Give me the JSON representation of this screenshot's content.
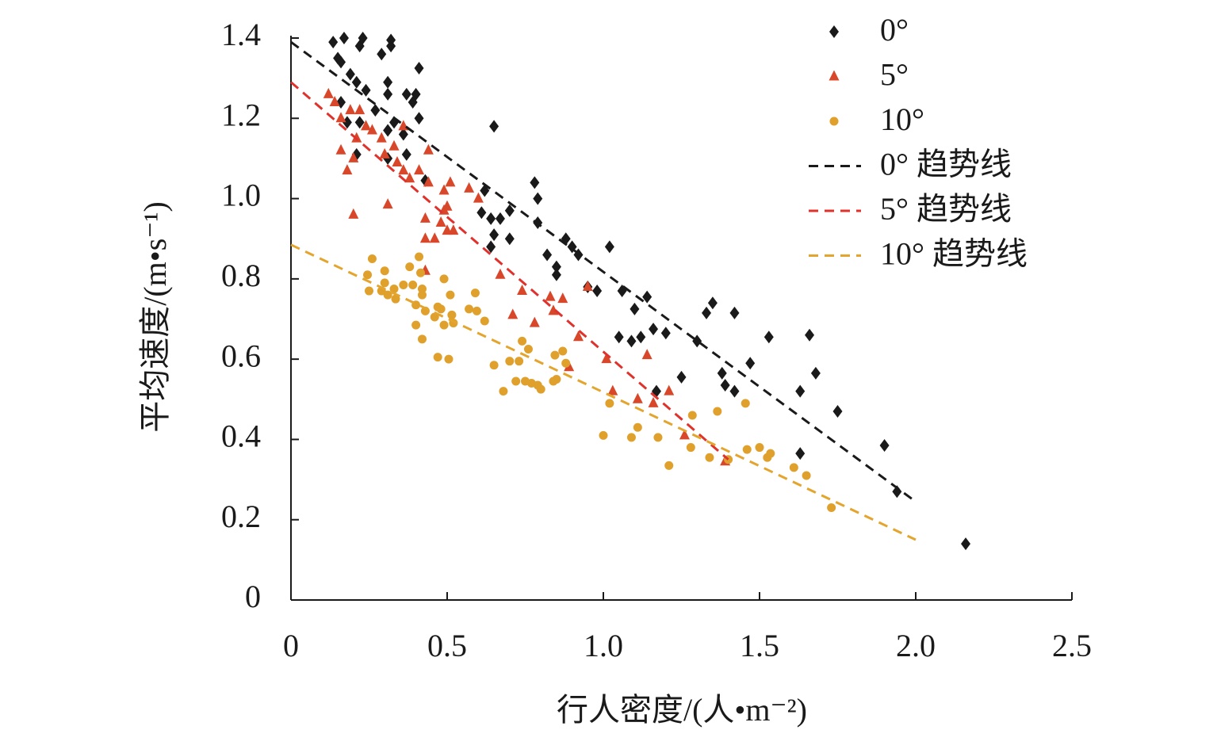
{
  "chart_data": {
    "type": "scatter",
    "x_label": "行人密度/(人•m⁻²)",
    "y_label": "平均速度/(m•s⁻¹)",
    "xlim": [
      0,
      2.5
    ],
    "xticks": [
      0,
      0.5,
      {
        "value": 1,
        "label": "1.0"
      },
      1.5,
      {
        "value": 2,
        "label": "2.0"
      },
      2.5
    ],
    "ylim": [
      0,
      1.4
    ],
    "yticks": [
      0,
      0.2,
      0.4,
      0.6,
      0.8,
      {
        "value": 1,
        "label": "1.0"
      },
      1.2,
      1.4
    ],
    "grid": false,
    "legend": "top-right",
    "series": [
      {
        "name": "0°",
        "color": "#1a1a1a",
        "marker": "diamond",
        "x": [
          0.135,
          0.17,
          0.23,
          0.32,
          0.15,
          0.16,
          0.22,
          0.29,
          0.32,
          0.19,
          0.21,
          0.24,
          0.31,
          0.31,
          0.41,
          0.37,
          0.4,
          0.39,
          0.16,
          0.18,
          0.22,
          0.27,
          0.31,
          0.33,
          0.36,
          0.41,
          0.37,
          0.21,
          0.31,
          0.43,
          0.65,
          0.62,
          0.61,
          0.64,
          0.67,
          0.7,
          0.65,
          0.7,
          0.64,
          0.78,
          0.79,
          0.79,
          0.82,
          0.85,
          0.85,
          0.88,
          0.9,
          0.92,
          0.95,
          0.98,
          1.02,
          1.06,
          1.1,
          1.14,
          1.05,
          1.09,
          1.12,
          1.16,
          1.2,
          1.17,
          1.25,
          1.3,
          1.33,
          1.35,
          1.42,
          1.38,
          1.39,
          1.42,
          1.47,
          1.53,
          1.63,
          1.63,
          1.66,
          1.68,
          1.75,
          1.9,
          1.94,
          2.16
        ],
        "values": [
          1.39,
          1.4,
          1.4,
          1.395,
          1.35,
          1.34,
          1.38,
          1.36,
          1.38,
          1.31,
          1.29,
          1.27,
          1.29,
          1.26,
          1.325,
          1.26,
          1.26,
          1.24,
          1.24,
          1.19,
          1.19,
          1.22,
          1.17,
          1.19,
          1.16,
          1.2,
          1.11,
          1.11,
          1.1,
          1.045,
          1.18,
          1.02,
          0.965,
          0.95,
          0.95,
          0.97,
          0.91,
          0.9,
          0.88,
          1.04,
          1.0,
          0.94,
          0.86,
          0.83,
          0.81,
          0.9,
          0.88,
          0.86,
          0.78,
          0.77,
          0.88,
          0.77,
          0.725,
          0.755,
          0.655,
          0.645,
          0.655,
          0.675,
          0.665,
          0.52,
          0.555,
          0.645,
          0.715,
          0.74,
          0.715,
          0.565,
          0.535,
          0.52,
          0.59,
          0.655,
          0.52,
          0.365,
          0.66,
          0.565,
          0.47,
          0.385,
          0.27,
          0.14
        ]
      },
      {
        "name": "5°",
        "color": "#d9472b",
        "marker": "triangle",
        "x": [
          0.12,
          0.14,
          0.16,
          0.19,
          0.22,
          0.16,
          0.2,
          0.18,
          0.2,
          0.21,
          0.24,
          0.26,
          0.29,
          0.3,
          0.33,
          0.34,
          0.36,
          0.38,
          0.31,
          0.36,
          0.41,
          0.44,
          0.44,
          0.43,
          0.43,
          0.46,
          0.49,
          0.49,
          0.51,
          0.5,
          0.48,
          0.5,
          0.52,
          0.57,
          0.6,
          0.67,
          0.71,
          0.74,
          0.78,
          0.83,
          0.84,
          0.87,
          0.89,
          0.92,
          0.95,
          1.01,
          1.03,
          1.11,
          1.14,
          1.16,
          1.21,
          1.26,
          1.39,
          0.43
        ],
        "values": [
          1.26,
          1.24,
          1.2,
          1.22,
          1.22,
          1.12,
          1.1,
          1.07,
          0.96,
          1.15,
          1.18,
          1.17,
          1.15,
          1.11,
          1.13,
          1.09,
          1.07,
          1.05,
          0.985,
          1.18,
          1.07,
          1.12,
          1.04,
          0.95,
          0.9,
          0.9,
          0.97,
          1.02,
          1.04,
          0.98,
          0.94,
          0.92,
          0.92,
          1.025,
          1.0,
          0.81,
          0.71,
          0.77,
          0.69,
          0.755,
          0.72,
          0.75,
          0.58,
          0.655,
          0.78,
          0.6,
          0.52,
          0.5,
          0.61,
          0.49,
          0.52,
          0.41,
          0.345,
          0.82
        ]
      },
      {
        "name": "10°",
        "color": "#e0a02c",
        "marker": "circle",
        "x": [
          0.26,
          0.245,
          0.25,
          0.29,
          0.3,
          0.3,
          0.31,
          0.33,
          0.335,
          0.36,
          0.38,
          0.39,
          0.4,
          0.4,
          0.41,
          0.415,
          0.42,
          0.42,
          0.42,
          0.43,
          0.46,
          0.47,
          0.48,
          0.47,
          0.49,
          0.49,
          0.51,
          0.505,
          0.515,
          0.52,
          0.57,
          0.59,
          0.595,
          0.62,
          0.65,
          0.68,
          0.7,
          0.72,
          0.73,
          0.74,
          0.76,
          0.75,
          0.77,
          0.79,
          0.8,
          0.84,
          0.85,
          0.845,
          0.87,
          0.88,
          1.0,
          1.02,
          1.09,
          1.11,
          1.175,
          1.21,
          1.28,
          1.285,
          1.34,
          1.365,
          1.4,
          1.455,
          1.46,
          1.5,
          1.525,
          1.535,
          1.61,
          1.65,
          1.73
        ],
        "values": [
          0.85,
          0.81,
          0.77,
          0.77,
          0.82,
          0.79,
          0.76,
          0.775,
          0.75,
          0.785,
          0.83,
          0.785,
          0.735,
          0.685,
          0.855,
          0.815,
          0.65,
          0.775,
          0.76,
          0.72,
          0.705,
          0.73,
          0.725,
          0.605,
          0.8,
          0.685,
          0.76,
          0.6,
          0.71,
          0.69,
          0.725,
          0.765,
          0.72,
          0.695,
          0.585,
          0.52,
          0.595,
          0.545,
          0.595,
          0.645,
          0.625,
          0.545,
          0.54,
          0.535,
          0.525,
          0.545,
          0.55,
          0.61,
          0.62,
          0.59,
          0.41,
          0.49,
          0.405,
          0.43,
          0.405,
          0.335,
          0.38,
          0.46,
          0.355,
          0.47,
          0.35,
          0.49,
          0.375,
          0.38,
          0.355,
          0.365,
          0.33,
          0.31,
          0.23
        ]
      },
      {
        "name": "0° 趋势线",
        "color": "#1a1a1a",
        "line": "dashed",
        "x": [
          0,
          2.0
        ],
        "values": [
          1.39,
          0.245
        ]
      },
      {
        "name": "5° 趋势线",
        "color": "#e0322c",
        "line": "dashed",
        "x": [
          0,
          1.4
        ],
        "values": [
          1.29,
          0.35
        ]
      },
      {
        "name": "10° 趋势线",
        "color": "#e3a52e",
        "line": "dashed",
        "x": [
          0,
          2.0
        ],
        "values": [
          0.885,
          0.15
        ]
      }
    ]
  }
}
